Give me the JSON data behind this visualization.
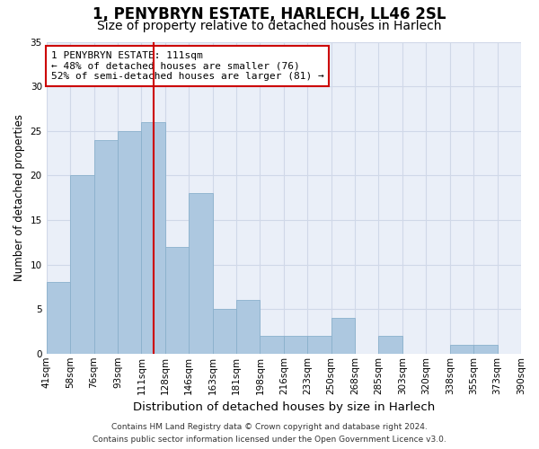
{
  "title": "1, PENYBRYN ESTATE, HARLECH, LL46 2SL",
  "subtitle": "Size of property relative to detached houses in Harlech",
  "xlabel": "Distribution of detached houses by size in Harlech",
  "ylabel": "Number of detached properties",
  "bar_values": [
    8,
    20,
    24,
    25,
    26,
    12,
    18,
    5,
    6,
    2,
    2,
    2,
    4,
    0,
    2,
    0,
    0,
    1,
    1,
    0
  ],
  "bar_labels": [
    "41sqm",
    "58sqm",
    "76sqm",
    "93sqm",
    "111sqm",
    "128sqm",
    "146sqm",
    "163sqm",
    "181sqm",
    "198sqm",
    "216sqm",
    "233sqm",
    "250sqm",
    "268sqm",
    "285sqm",
    "303sqm",
    "320sqm",
    "338sqm",
    "355sqm",
    "373sqm",
    "390sqm"
  ],
  "bar_color": "#adc8e0",
  "bar_edgecolor": "#8ab0cc",
  "vline_color": "#cc0000",
  "annotation_text": "1 PENYBRYN ESTATE: 111sqm\n← 48% of detached houses are smaller (76)\n52% of semi-detached houses are larger (81) →",
  "annotation_box_facecolor": "#ffffff",
  "annotation_box_edgecolor": "#cc0000",
  "ylim": [
    0,
    35
  ],
  "yticks": [
    0,
    5,
    10,
    15,
    20,
    25,
    30,
    35
  ],
  "grid_color": "#d0d8e8",
  "background_color": "#eaeff8",
  "footer_line1": "Contains HM Land Registry data © Crown copyright and database right 2024.",
  "footer_line2": "Contains public sector information licensed under the Open Government Licence v3.0.",
  "title_fontsize": 12,
  "subtitle_fontsize": 10,
  "xlabel_fontsize": 9.5,
  "ylabel_fontsize": 8.5,
  "tick_fontsize": 7.5,
  "annotation_fontsize": 8,
  "footer_fontsize": 6.5
}
